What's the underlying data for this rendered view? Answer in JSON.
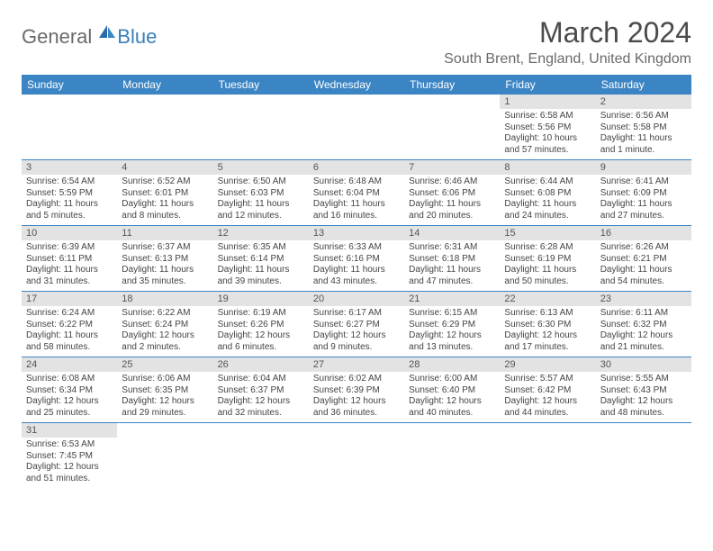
{
  "logo": {
    "general": "General",
    "blue": "Blue"
  },
  "title": "March 2024",
  "location": "South Brent, England, United Kingdom",
  "header_bg": "#3b85c4",
  "header_fg": "#ffffff",
  "datebar_bg": "#e3e3e3",
  "day_names": [
    "Sunday",
    "Monday",
    "Tuesday",
    "Wednesday",
    "Thursday",
    "Friday",
    "Saturday"
  ],
  "weeks": [
    [
      null,
      null,
      null,
      null,
      null,
      {
        "n": "1",
        "sunrise": "Sunrise: 6:58 AM",
        "sunset": "Sunset: 5:56 PM",
        "daylight": "Daylight: 10 hours and 57 minutes."
      },
      {
        "n": "2",
        "sunrise": "Sunrise: 6:56 AM",
        "sunset": "Sunset: 5:58 PM",
        "daylight": "Daylight: 11 hours and 1 minute."
      }
    ],
    [
      {
        "n": "3",
        "sunrise": "Sunrise: 6:54 AM",
        "sunset": "Sunset: 5:59 PM",
        "daylight": "Daylight: 11 hours and 5 minutes."
      },
      {
        "n": "4",
        "sunrise": "Sunrise: 6:52 AM",
        "sunset": "Sunset: 6:01 PM",
        "daylight": "Daylight: 11 hours and 8 minutes."
      },
      {
        "n": "5",
        "sunrise": "Sunrise: 6:50 AM",
        "sunset": "Sunset: 6:03 PM",
        "daylight": "Daylight: 11 hours and 12 minutes."
      },
      {
        "n": "6",
        "sunrise": "Sunrise: 6:48 AM",
        "sunset": "Sunset: 6:04 PM",
        "daylight": "Daylight: 11 hours and 16 minutes."
      },
      {
        "n": "7",
        "sunrise": "Sunrise: 6:46 AM",
        "sunset": "Sunset: 6:06 PM",
        "daylight": "Daylight: 11 hours and 20 minutes."
      },
      {
        "n": "8",
        "sunrise": "Sunrise: 6:44 AM",
        "sunset": "Sunset: 6:08 PM",
        "daylight": "Daylight: 11 hours and 24 minutes."
      },
      {
        "n": "9",
        "sunrise": "Sunrise: 6:41 AM",
        "sunset": "Sunset: 6:09 PM",
        "daylight": "Daylight: 11 hours and 27 minutes."
      }
    ],
    [
      {
        "n": "10",
        "sunrise": "Sunrise: 6:39 AM",
        "sunset": "Sunset: 6:11 PM",
        "daylight": "Daylight: 11 hours and 31 minutes."
      },
      {
        "n": "11",
        "sunrise": "Sunrise: 6:37 AM",
        "sunset": "Sunset: 6:13 PM",
        "daylight": "Daylight: 11 hours and 35 minutes."
      },
      {
        "n": "12",
        "sunrise": "Sunrise: 6:35 AM",
        "sunset": "Sunset: 6:14 PM",
        "daylight": "Daylight: 11 hours and 39 minutes."
      },
      {
        "n": "13",
        "sunrise": "Sunrise: 6:33 AM",
        "sunset": "Sunset: 6:16 PM",
        "daylight": "Daylight: 11 hours and 43 minutes."
      },
      {
        "n": "14",
        "sunrise": "Sunrise: 6:31 AM",
        "sunset": "Sunset: 6:18 PM",
        "daylight": "Daylight: 11 hours and 47 minutes."
      },
      {
        "n": "15",
        "sunrise": "Sunrise: 6:28 AM",
        "sunset": "Sunset: 6:19 PM",
        "daylight": "Daylight: 11 hours and 50 minutes."
      },
      {
        "n": "16",
        "sunrise": "Sunrise: 6:26 AM",
        "sunset": "Sunset: 6:21 PM",
        "daylight": "Daylight: 11 hours and 54 minutes."
      }
    ],
    [
      {
        "n": "17",
        "sunrise": "Sunrise: 6:24 AM",
        "sunset": "Sunset: 6:22 PM",
        "daylight": "Daylight: 11 hours and 58 minutes."
      },
      {
        "n": "18",
        "sunrise": "Sunrise: 6:22 AM",
        "sunset": "Sunset: 6:24 PM",
        "daylight": "Daylight: 12 hours and 2 minutes."
      },
      {
        "n": "19",
        "sunrise": "Sunrise: 6:19 AM",
        "sunset": "Sunset: 6:26 PM",
        "daylight": "Daylight: 12 hours and 6 minutes."
      },
      {
        "n": "20",
        "sunrise": "Sunrise: 6:17 AM",
        "sunset": "Sunset: 6:27 PM",
        "daylight": "Daylight: 12 hours and 9 minutes."
      },
      {
        "n": "21",
        "sunrise": "Sunrise: 6:15 AM",
        "sunset": "Sunset: 6:29 PM",
        "daylight": "Daylight: 12 hours and 13 minutes."
      },
      {
        "n": "22",
        "sunrise": "Sunrise: 6:13 AM",
        "sunset": "Sunset: 6:30 PM",
        "daylight": "Daylight: 12 hours and 17 minutes."
      },
      {
        "n": "23",
        "sunrise": "Sunrise: 6:11 AM",
        "sunset": "Sunset: 6:32 PM",
        "daylight": "Daylight: 12 hours and 21 minutes."
      }
    ],
    [
      {
        "n": "24",
        "sunrise": "Sunrise: 6:08 AM",
        "sunset": "Sunset: 6:34 PM",
        "daylight": "Daylight: 12 hours and 25 minutes."
      },
      {
        "n": "25",
        "sunrise": "Sunrise: 6:06 AM",
        "sunset": "Sunset: 6:35 PM",
        "daylight": "Daylight: 12 hours and 29 minutes."
      },
      {
        "n": "26",
        "sunrise": "Sunrise: 6:04 AM",
        "sunset": "Sunset: 6:37 PM",
        "daylight": "Daylight: 12 hours and 32 minutes."
      },
      {
        "n": "27",
        "sunrise": "Sunrise: 6:02 AM",
        "sunset": "Sunset: 6:39 PM",
        "daylight": "Daylight: 12 hours and 36 minutes."
      },
      {
        "n": "28",
        "sunrise": "Sunrise: 6:00 AM",
        "sunset": "Sunset: 6:40 PM",
        "daylight": "Daylight: 12 hours and 40 minutes."
      },
      {
        "n": "29",
        "sunrise": "Sunrise: 5:57 AM",
        "sunset": "Sunset: 6:42 PM",
        "daylight": "Daylight: 12 hours and 44 minutes."
      },
      {
        "n": "30",
        "sunrise": "Sunrise: 5:55 AM",
        "sunset": "Sunset: 6:43 PM",
        "daylight": "Daylight: 12 hours and 48 minutes."
      }
    ],
    [
      {
        "n": "31",
        "sunrise": "Sunrise: 6:53 AM",
        "sunset": "Sunset: 7:45 PM",
        "daylight": "Daylight: 12 hours and 51 minutes."
      },
      null,
      null,
      null,
      null,
      null,
      null
    ]
  ]
}
